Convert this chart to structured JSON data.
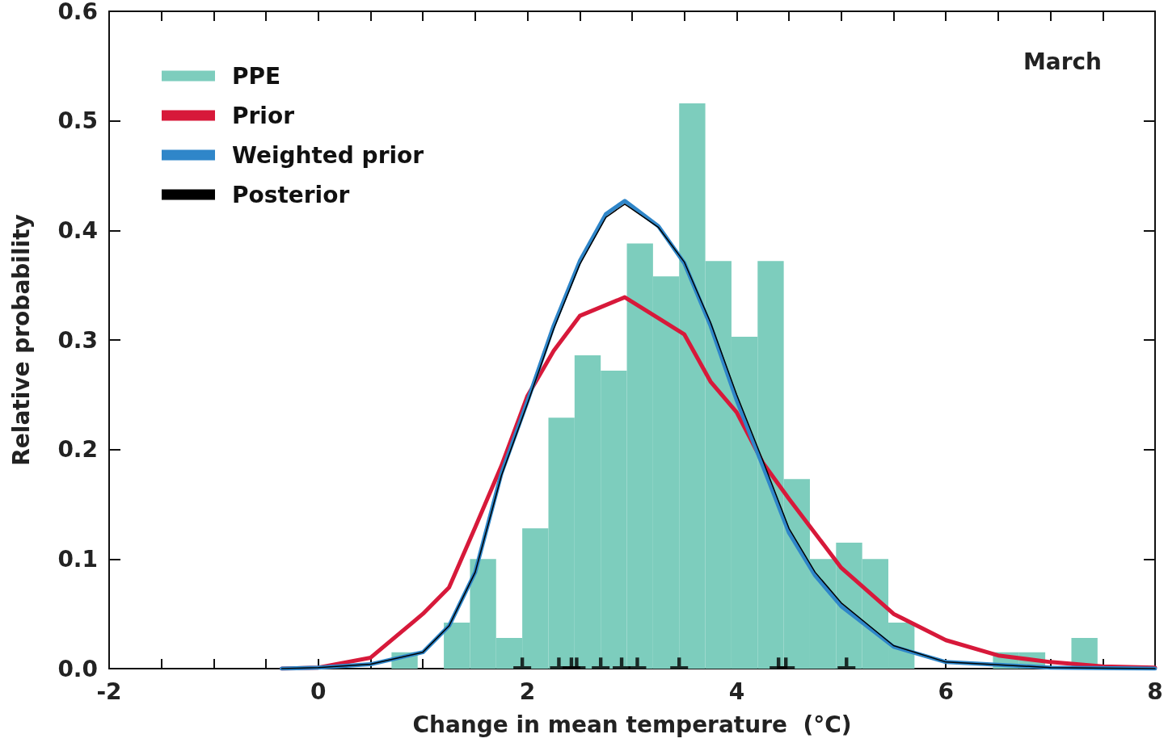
{
  "chart_data": {
    "type": "histogram",
    "xlabel": "Change in mean temperature  (°C)",
    "ylabel": "Relative probability",
    "annotations": [
      "March"
    ],
    "xlim": [
      -2,
      8
    ],
    "xticks": [
      -2,
      {
        "value": -1.5,
        "label": null
      },
      {
        "value": -1,
        "label": null
      },
      {
        "value": -0.5,
        "label": null
      },
      0,
      {
        "value": 0.5,
        "label": null
      },
      {
        "value": 1,
        "label": null
      },
      {
        "value": 1.5,
        "label": null
      },
      2,
      {
        "value": 2.5,
        "label": null
      },
      {
        "value": 3,
        "label": null
      },
      {
        "value": 3.5,
        "label": null
      },
      4,
      {
        "value": 4.5,
        "label": null
      },
      {
        "value": 5,
        "label": null
      },
      {
        "value": 5.5,
        "label": null
      },
      6,
      {
        "value": 6.5,
        "label": null
      },
      {
        "value": 7,
        "label": null
      },
      {
        "value": 7.5,
        "label": null
      },
      8
    ],
    "ylim": [
      0,
      0.6
    ],
    "yticks": [
      {
        "value": 0,
        "label": "0.0"
      },
      0.1,
      0.2,
      0.3,
      0.4,
      0.5,
      0.6
    ],
    "grid": false,
    "legend": "top left",
    "series": [
      {
        "name": "PPE",
        "type": "histogram",
        "color": "#7dcdbd",
        "bins": [
          0.7,
          0.95,
          1.2,
          1.45,
          1.7,
          1.95,
          2.2,
          2.45,
          2.7,
          2.95,
          3.2,
          3.45,
          3.7,
          3.95,
          4.2,
          4.45,
          4.7,
          4.95,
          5.2,
          5.45,
          5.7,
          5.95,
          6.2,
          6.45,
          6.7,
          6.95,
          7.2,
          7.45
        ],
        "values": [
          0.015,
          0,
          0.042,
          0.1,
          0.028,
          0.128,
          0.229,
          0.286,
          0.272,
          0.388,
          0.358,
          0.516,
          0.372,
          0.303,
          0.372,
          0.173,
          0.1,
          0.115,
          0.1,
          0.042,
          0,
          0,
          0,
          0.015,
          0.015,
          0,
          0.028
        ]
      },
      {
        "name": "Prior",
        "type": "line",
        "color": "#d7193a",
        "x": [
          -0.35,
          0,
          0.5,
          1,
          1.25,
          1.5,
          1.75,
          2,
          2.25,
          2.5,
          2.93,
          3.25,
          3.5,
          3.75,
          4,
          4.25,
          4.5,
          5,
          5.5,
          6,
          6.5,
          7,
          7.5,
          8
        ],
        "values": [
          0,
          0.001,
          0.01,
          0.05,
          0.074,
          0.129,
          0.185,
          0.249,
          0.29,
          0.322,
          0.339,
          0.32,
          0.305,
          0.262,
          0.234,
          0.188,
          0.155,
          0.092,
          0.05,
          0.026,
          0.012,
          0.006,
          0.002,
          0.001
        ]
      },
      {
        "name": "Weighted prior",
        "type": "line",
        "color": "#2f86c9",
        "x": [
          -0.35,
          0,
          0.5,
          1,
          1.25,
          1.5,
          1.75,
          2,
          2.25,
          2.5,
          2.75,
          2.93,
          3.25,
          3.5,
          3.75,
          4,
          4.25,
          4.5,
          4.75,
          5,
          5.5,
          6,
          7,
          8
        ],
        "values": [
          0,
          0.001,
          0.004,
          0.015,
          0.039,
          0.088,
          0.178,
          0.244,
          0.313,
          0.372,
          0.415,
          0.427,
          0.404,
          0.37,
          0.313,
          0.245,
          0.185,
          0.124,
          0.085,
          0.057,
          0.02,
          0.006,
          0.001,
          0
        ]
      },
      {
        "name": "Posterior",
        "type": "line",
        "color": "#000000",
        "x": [
          -0.35,
          0,
          0.5,
          1,
          1.25,
          1.5,
          1.75,
          2,
          2.25,
          2.5,
          2.75,
          2.93,
          3.25,
          3.5,
          3.75,
          4,
          4.25,
          4.5,
          4.75,
          5,
          5.5,
          6,
          7,
          8
        ],
        "values": [
          0,
          0.001,
          0.004,
          0.015,
          0.039,
          0.088,
          0.176,
          0.242,
          0.31,
          0.369,
          0.412,
          0.424,
          0.403,
          0.371,
          0.316,
          0.25,
          0.19,
          0.128,
          0.088,
          0.06,
          0.021,
          0.006,
          0.001,
          0
        ]
      },
      {
        "type": "scatter",
        "color": "#000000",
        "x": [
          1.95,
          2.3,
          2.42,
          2.47,
          2.7,
          2.9,
          3.05,
          3.45,
          4.4,
          4.47,
          5.05
        ],
        "values": [
          0.005,
          0.005,
          0.005,
          0.005,
          0.005,
          0.005,
          0.005,
          0.005,
          0.005,
          0.005,
          0.005
        ]
      }
    ]
  }
}
